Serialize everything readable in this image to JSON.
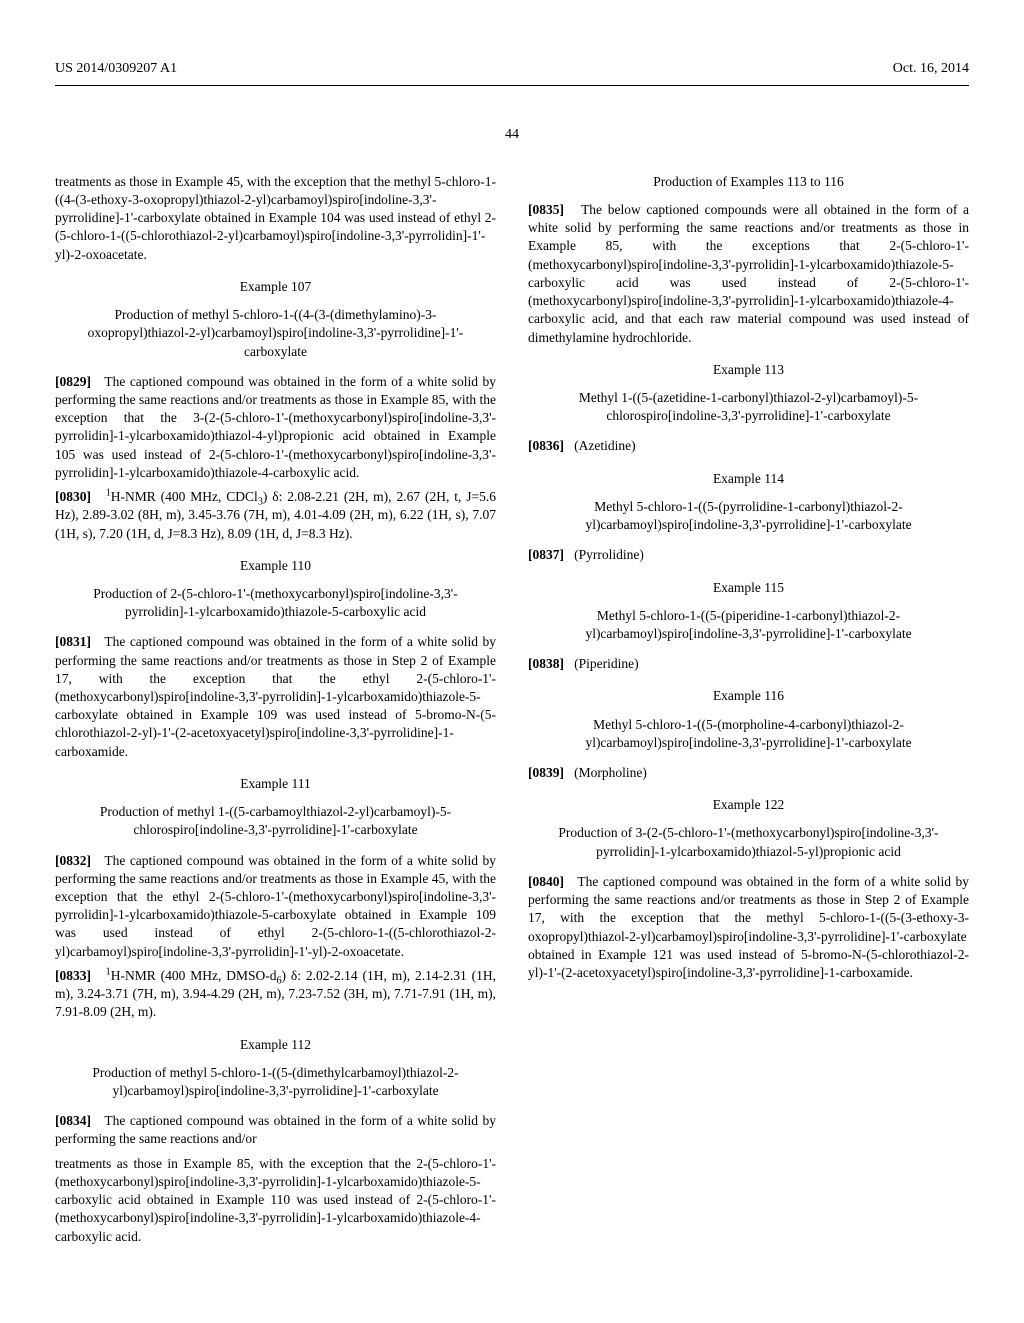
{
  "header": {
    "left": "US 2014/0309207 A1",
    "right": "Oct. 16, 2014"
  },
  "page_num": "44",
  "col1": {
    "p1": "treatments as those in Example 45, with the exception that the methyl 5-chloro-1-((4-(3-ethoxy-3-oxopropyl)thiazol-2-yl)carbamoyl)spiro[indoline-3,3'-pyrrolidine]-1'-carboxylate obtained in Example 104 was used instead of ethyl 2-(5-chloro-1-((5-chlorothiazol-2-yl)carbamoyl)spiro[indoline-3,3'-pyrrolidin]-1'-yl)-2-oxoacetate.",
    "ex107_head": "Example 107",
    "ex107_title": "Production of methyl 5-chloro-1-((4-(3-(dimethylamino)-3-oxopropyl)thiazol-2-yl)carbamoyl)spiro[indoline-3,3'-pyrrolidine]-1'-carboxylate",
    "p0829_tag": "[0829]",
    "p0829": "The captioned compound was obtained in the form of a white solid by performing the same reactions and/or treatments as those in Example 85, with the exception that the 3-(2-(5-chloro-1'-(methoxycarbonyl)spiro[indoline-3,3'-pyrrolidin]-1-ylcarboxamido)thiazol-4-yl)propionic acid obtained in Example 105 was used instead of 2-(5-chloro-1'-(methoxycarbonyl)spiro[indoline-3,3'-pyrrolidin]-1-ylcarboxamido)thiazole-4-carboxylic acid.",
    "p0830_tag": "[0830]",
    "p0830_pre": "1",
    "p0830": "H-NMR (400 MHz, CDCl",
    "p0830_sub": "3",
    "p0830_rest": ") δ: 2.08-2.21 (2H, m), 2.67 (2H, t, J=5.6 Hz), 2.89-3.02 (8H, m), 3.45-3.76 (7H, m), 4.01-4.09 (2H, m), 6.22 (1H, s), 7.07 (1H, s), 7.20 (1H, d, J=8.3 Hz), 8.09 (1H, d, J=8.3 Hz).",
    "ex110_head": "Example 110",
    "ex110_title": "Production of 2-(5-chloro-1'-(methoxycarbonyl)spiro[indoline-3,3'-pyrrolidin]-1-ylcarboxamido)thiazole-5-carboxylic acid",
    "p0831_tag": "[0831]",
    "p0831": "The captioned compound was obtained in the form of a white solid by performing the same reactions and/or treatments as those in Step 2 of Example 17, with the exception that the ethyl 2-(5-chloro-1'-(methoxycarbonyl)spiro[indoline-3,3'-pyrrolidin]-1-ylcarboxamido)thiazole-5-carboxylate obtained in Example 109 was used instead of 5-bromo-N-(5-chlorothiazol-2-yl)-1'-(2-acetoxyacetyl)spiro[indoline-3,3'-pyrrolidine]-1-carboxamide.",
    "ex111_head": "Example 111",
    "ex111_title": "Production of methyl 1-((5-carbamoylthiazol-2-yl)carbamoyl)-5-chlorospiro[indoline-3,3'-pyrrolidine]-1'-carboxylate",
    "p0832_tag": "[0832]",
    "p0832": "The captioned compound was obtained in the form of a white solid by performing the same reactions and/or treatments as those in Example 45, with the exception that the ethyl 2-(5-chloro-1'-(methoxycarbonyl)spiro[indoline-3,3'-pyrrolidin]-1-ylcarboxamido)thiazole-5-carboxylate obtained in Example 109 was used instead of ethyl 2-(5-chloro-1-((5-chlorothiazol-2-yl)carbamoyl)spiro[indoline-3,3'-pyrrolidin]-1'-yl)-2-oxoacetate.",
    "p0833_tag": "[0833]",
    "p0833_pre": "1",
    "p0833": "H-NMR (400 MHz, DMSO-d",
    "p0833_sub": "6",
    "p0833_rest": ") δ: 2.02-2.14 (1H, m), 2.14-2.31 (1H, m), 3.24-3.71 (7H, m), 3.94-4.29 (2H, m), 7.23-7.52 (3H, m), 7.71-7.91 (1H, m), 7.91-8.09 (2H, m).",
    "ex112_head": "Example 112",
    "ex112_title": "Production of methyl 5-chloro-1-((5-(dimethylcarbamoyl)thiazol-2-yl)carbamoyl)spiro[indoline-3,3'-pyrrolidine]-1'-carboxylate",
    "p0834_tag": "[0834]",
    "p0834": "The captioned compound was obtained in the form of a white solid by performing the same reactions and/or"
  },
  "col2": {
    "p0834_cont": "treatments as those in Example 85, with the exception that the 2-(5-chloro-1'-(methoxycarbonyl)spiro[indoline-3,3'-pyrrolidin]-1-ylcarboxamido)thiazole-5-carboxylic acid obtained in Example 110 was used instead of 2-(5-chloro-1'-(methoxycarbonyl)spiro[indoline-3,3'-pyrrolidin]-1-ylcarboxamido)thiazole-4-carboxylic acid.",
    "ex113_116_head": "Production of Examples 113 to 116",
    "p0835_tag": "[0835]",
    "p0835": "The below captioned compounds were all obtained in the form of a white solid by performing the same reactions and/or treatments as those in Example 85, with the exceptions that 2-(5-chloro-1'-(methoxycarbonyl)spiro[indoline-3,3'-pyrrolidin]-1-ylcarboxamido)thiazole-5-carboxylic acid was used instead of 2-(5-chloro-1'-(methoxycarbonyl)spiro[indoline-3,3'-pyrrolidin]-1-ylcarboxamido)thiazole-4-carboxylic acid, and that each raw material compound was used instead of dimethylamine hydrochloride.",
    "ex113_head": "Example 113",
    "ex113_title": "Methyl 1-((5-(azetidine-1-carbonyl)thiazol-2-yl)carbamoyl)-5-chlorospiro[indoline-3,3'-pyrrolidine]-1'-carboxylate",
    "p0836_tag": "[0836]",
    "p0836": "(Azetidine)",
    "ex114_head": "Example 114",
    "ex114_title": "Methyl 5-chloro-1-((5-(pyrrolidine-1-carbonyl)thiazol-2-yl)carbamoyl)spiro[indoline-3,3'-pyrrolidine]-1'-carboxylate",
    "p0837_tag": "[0837]",
    "p0837": "(Pyrrolidine)",
    "ex115_head": "Example 115",
    "ex115_title": "Methyl 5-chloro-1-((5-(piperidine-1-carbonyl)thiazol-2-yl)carbamoyl)spiro[indoline-3,3'-pyrrolidine]-1'-carboxylate",
    "p0838_tag": "[0838]",
    "p0838": "(Piperidine)",
    "ex116_head": "Example 116",
    "ex116_title": "Methyl 5-chloro-1-((5-(morpholine-4-carbonyl)thiazol-2-yl)carbamoyl)spiro[indoline-3,3'-pyrrolidine]-1'-carboxylate",
    "p0839_tag": "[0839]",
    "p0839": "(Morpholine)",
    "ex122_head": "Example 122",
    "ex122_title": "Production of 3-(2-(5-chloro-1'-(methoxycarbonyl)spiro[indoline-3,3'-pyrrolidin]-1-ylcarboxamido)thiazol-5-yl)propionic acid",
    "p0840_tag": "[0840]",
    "p0840": "The captioned compound was obtained in the form of a white solid by performing the same reactions and/or treatments as those in Step 2 of Example 17, with the exception that the methyl 5-chloro-1-((5-(3-ethoxy-3-oxopropyl)thiazol-2-yl)carbamoyl)spiro[indoline-3,3'-pyrrolidine]-1'-carboxylate obtained in Example 121 was used instead of 5-bromo-N-(5-chlorothiazol-2-yl)-1'-(2-acetoxyacetyl)spiro[indoline-3,3'-pyrrolidine]-1-carboxamide."
  }
}
